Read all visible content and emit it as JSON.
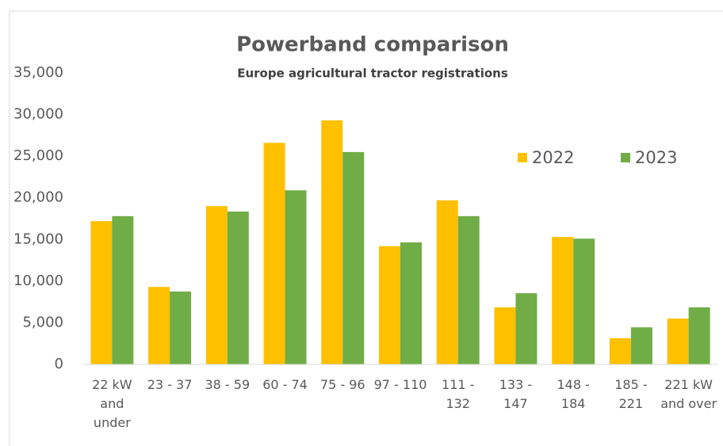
{
  "chart_data": {
    "type": "bar",
    "title": "Powerband comparison",
    "subtitle": "Europe agricultural tractor registrations",
    "categories": [
      "22 kW and under",
      "23 - 37",
      "38 - 59",
      "60 - 74",
      "75 - 96",
      "97 - 110",
      "111 - 132",
      "133 - 147",
      "148 - 184",
      "185 - 221",
      "221 kW and over"
    ],
    "series": [
      {
        "name": "2022",
        "color": "#ffc000",
        "values": [
          17200,
          9300,
          19000,
          26600,
          29300,
          14200,
          19700,
          6850,
          15300,
          3150,
          5500
        ]
      },
      {
        "name": "2023",
        "color": "#70ad47",
        "values": [
          17800,
          8750,
          18350,
          20900,
          25500,
          14650,
          17800,
          8550,
          15100,
          4450,
          6850
        ]
      }
    ],
    "ylim": [
      0,
      35000
    ],
    "yticks": [
      0,
      {
        "value": 5000,
        "label": "5,000"
      },
      {
        "value": 10000,
        "label": "10,000"
      },
      {
        "value": 15000,
        "label": "15,000"
      },
      {
        "value": 20000,
        "label": "20,000"
      },
      {
        "value": 25000,
        "label": "25,000"
      },
      {
        "value": 30000,
        "label": "30,000"
      },
      {
        "value": 35000,
        "label": "35,000"
      }
    ],
    "grid": false,
    "legend": "upper right"
  }
}
